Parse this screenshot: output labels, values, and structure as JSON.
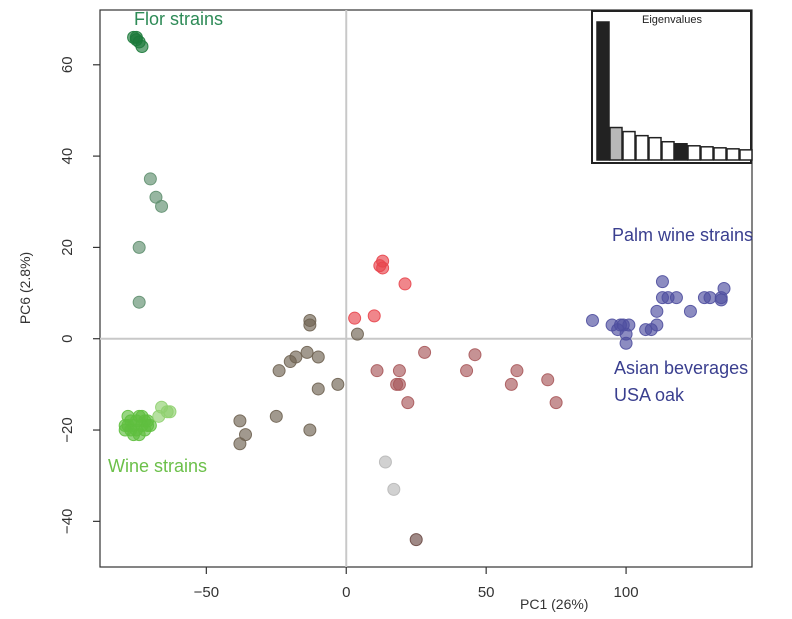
{
  "chart_data": {
    "type": "scatter",
    "title": "",
    "xlabel": "PC1 (26%)",
    "ylabel": "PC6 (2.8%)",
    "xlim": [
      -88,
      145
    ],
    "ylim": [
      -50,
      72
    ],
    "xticks": [
      -50,
      0,
      50,
      100
    ],
    "xtick_labels": [
      "−50",
      "0",
      "50",
      "100"
    ],
    "yticks": [
      -40,
      -20,
      0,
      20,
      40,
      60
    ],
    "ytick_labels": [
      "−40",
      "−20",
      "0",
      "20",
      "40",
      "60"
    ],
    "reference_lines": {
      "x": 0,
      "y": 0
    },
    "grid": false,
    "annotations": [
      {
        "text": "Flor strains",
        "color": "#2e8b57"
      },
      {
        "text": "Palm wine strains",
        "color": "#3a3f8f"
      },
      {
        "text": "Asian beverages",
        "color": "#3a3f8f"
      },
      {
        "text": "USA oak",
        "color": "#3a3f8f"
      },
      {
        "text": "Wine strains",
        "color": "#6cc04a"
      }
    ],
    "series": [
      {
        "color": "#1b7a3a",
        "points": [
          [
            -76,
            66
          ],
          [
            -75,
            66
          ],
          [
            -74,
            65
          ],
          [
            -75,
            65.5
          ],
          [
            -73,
            64
          ]
        ]
      },
      {
        "color": "#5f8f6f",
        "points": [
          [
            -70,
            35
          ],
          [
            -68,
            31
          ],
          [
            -66,
            29
          ],
          [
            -74,
            20
          ],
          [
            -74,
            8
          ]
        ]
      },
      {
        "color": "#5fbf3f",
        "points": [
          [
            -79,
            -20
          ],
          [
            -78,
            -19
          ],
          [
            -77,
            -18
          ],
          [
            -76,
            -19
          ],
          [
            -75,
            -18
          ],
          [
            -74,
            -17
          ],
          [
            -73,
            -17
          ],
          [
            -72,
            -18
          ],
          [
            -71,
            -19
          ],
          [
            -78,
            -17
          ],
          [
            -77,
            -20
          ],
          [
            -76,
            -21
          ],
          [
            -75,
            -20
          ],
          [
            -73,
            -19
          ],
          [
            -72,
            -20
          ],
          [
            -74,
            -21
          ],
          [
            -71,
            -18
          ],
          [
            -70,
            -19
          ],
          [
            -79,
            -19
          ]
        ]
      },
      {
        "color": "#8fd06f",
        "points": [
          [
            -66,
            -15
          ],
          [
            -64,
            -16
          ],
          [
            -63,
            -16
          ],
          [
            -67,
            -17
          ]
        ]
      },
      {
        "color": "#6f6352",
        "points": [
          [
            -38,
            -18
          ],
          [
            -36,
            -21
          ],
          [
            -38,
            -23
          ],
          [
            -25,
            -17
          ],
          [
            -24,
            -7
          ],
          [
            -20,
            -5
          ],
          [
            -18,
            -4
          ],
          [
            -14,
            -3
          ],
          [
            -13,
            3
          ],
          [
            -13,
            4
          ],
          [
            -10,
            -4
          ],
          [
            -10,
            -11
          ],
          [
            -13,
            -20
          ],
          [
            -3,
            -10
          ],
          [
            4,
            1
          ]
        ]
      },
      {
        "color": "#e8454d",
        "points": [
          [
            13,
            17
          ],
          [
            12,
            16
          ],
          [
            13,
            15.5
          ],
          [
            21,
            12
          ],
          [
            3,
            4.5
          ],
          [
            10,
            5
          ]
        ]
      },
      {
        "color": "#a8585a",
        "points": [
          [
            11,
            -7
          ],
          [
            19,
            -7
          ],
          [
            18,
            -10
          ],
          [
            19,
            -10
          ],
          [
            22,
            -14
          ],
          [
            28,
            -3
          ],
          [
            43,
            -7
          ],
          [
            46,
            -3.5
          ],
          [
            59,
            -10
          ],
          [
            61,
            -7
          ],
          [
            72,
            -9
          ],
          [
            75,
            -14
          ]
        ]
      },
      {
        "color": "#b8b8b8",
        "points": [
          [
            14,
            -27
          ],
          [
            17,
            -33
          ]
        ]
      },
      {
        "color": "#6b4a45",
        "points": [
          [
            25,
            -44
          ]
        ]
      },
      {
        "color": "#4f4f9f",
        "points": [
          [
            88,
            4
          ],
          [
            95,
            3
          ],
          [
            98,
            3
          ],
          [
            99,
            3
          ],
          [
            101,
            3
          ],
          [
            97,
            2
          ],
          [
            100,
            1
          ],
          [
            100,
            -1
          ],
          [
            107,
            2
          ],
          [
            109,
            2
          ],
          [
            111,
            3
          ],
          [
            111,
            6
          ],
          [
            113,
            9
          ],
          [
            113,
            12.5
          ],
          [
            115,
            9
          ],
          [
            118,
            9
          ],
          [
            123,
            6
          ],
          [
            128,
            9
          ],
          [
            130,
            9
          ],
          [
            134,
            8.5
          ],
          [
            135,
            11
          ],
          [
            134,
            9
          ]
        ]
      }
    ]
  },
  "inset": {
    "title": "Eigenvalues",
    "bars": [
      {
        "value": 68,
        "color": "#222222"
      },
      {
        "value": 16,
        "color": "#b8b8b8"
      },
      {
        "value": 14,
        "color": "#ffffff"
      },
      {
        "value": 12,
        "color": "#ffffff"
      },
      {
        "value": 11,
        "color": "#ffffff"
      },
      {
        "value": 9,
        "color": "#ffffff"
      },
      {
        "value": 8,
        "color": "#222222"
      },
      {
        "value": 7,
        "color": "#ffffff"
      },
      {
        "value": 6.5,
        "color": "#ffffff"
      },
      {
        "value": 6,
        "color": "#ffffff"
      },
      {
        "value": 5.5,
        "color": "#ffffff"
      },
      {
        "value": 5,
        "color": "#ffffff"
      }
    ]
  }
}
